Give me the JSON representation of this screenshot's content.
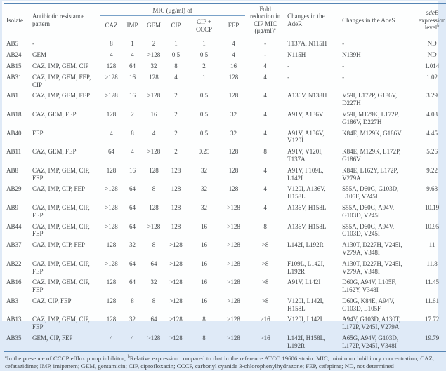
{
  "table": {
    "headers": {
      "isolate": "Isolate",
      "pattern": "Antibiotic resistance pattern",
      "mic_group": "MIC (μg/ml) of",
      "mic_cols": [
        "CAZ",
        "IMP",
        "GEM",
        "CIP",
        "CIP + CCCP",
        "FEP"
      ],
      "fold": {
        "text": "Fold reduction in CIP MIC (μg/ml)",
        "sup": "a"
      },
      "ader": "Changes in the AdeR",
      "ades": "Changes in the AdeS",
      "adeb": {
        "italic": "adeB",
        "rest": " expression level",
        "sup": "b"
      }
    },
    "rows": [
      {
        "isolate": "AB5",
        "pattern": "-",
        "mic": [
          "8",
          "1",
          "2",
          "1",
          "1",
          "4"
        ],
        "fold": "-",
        "ader": "T137A, N115H",
        "ades": "-",
        "adeb": "ND"
      },
      {
        "isolate": "AB24",
        "pattern": "GEM",
        "mic": [
          "4",
          "4",
          ">128",
          "0.5",
          "0.5",
          "4"
        ],
        "fold": "-",
        "ader": "N115H",
        "ades": "N139H",
        "adeb": "ND"
      },
      {
        "isolate": "AB15",
        "pattern": "CAZ, IMP, GEM, CIP",
        "mic": [
          "128",
          "64",
          "32",
          "8",
          "2",
          "16"
        ],
        "fold": "4",
        "ader": "-",
        "ades": "-",
        "adeb": "1.014"
      },
      {
        "isolate": "AB31",
        "pattern": "CAZ, IMP, GEM, FEP, CIP",
        "mic": [
          ">128",
          "16",
          "128",
          "4",
          "1",
          "128"
        ],
        "fold": "4",
        "ader": "-",
        "ades": "-",
        "adeb": "1.02"
      },
      {
        "isolate": "AB1",
        "pattern": "CAZ, IMP, GEM, FEP",
        "mic": [
          ">128",
          "16",
          ">128",
          "2",
          "0.5",
          "128"
        ],
        "fold": "4",
        "ader": "A136V, N138H",
        "ades": "V59I, L172P, G186V, D227H",
        "adeb": "3.29"
      },
      {
        "isolate": "AB18",
        "pattern": "CAZ, GEM, FEP",
        "mic": [
          "128",
          "2",
          "16",
          "2",
          "0.5",
          "32"
        ],
        "fold": "4",
        "ader": "A91V, A136V",
        "ades": "V59I, M129K, L172P, G186V, D227H",
        "adeb": "4.03"
      },
      {
        "isolate": "AB40",
        "pattern": "FEP",
        "mic": [
          "4",
          "8",
          "4",
          "2",
          "0.5",
          "32"
        ],
        "fold": "4",
        "ader": "A91V, A136V, V120I",
        "ades": "K84E, M129K, G186V",
        "adeb": "4.45"
      },
      {
        "isolate": "AB11",
        "pattern": "CAZ, GEM, FEP",
        "mic": [
          "64",
          "4",
          ">128",
          "2",
          "0.25",
          "128"
        ],
        "fold": "8",
        "ader": "A91V, V120I, T137A",
        "ades": "K84E, M129K, L172P, G186V",
        "adeb": "5.26"
      },
      {
        "isolate": "AB8",
        "pattern": "CAZ, IMP, GEM, CIP, FEP",
        "mic": [
          "128",
          "16",
          "128",
          "128",
          "32",
          "128"
        ],
        "fold": "4",
        "ader": "A91V, F109L, L142I",
        "ades": "K84E, L162Y, L172P, V279A",
        "adeb": "9.22"
      },
      {
        "isolate": "AB29",
        "pattern": "CAZ, IMP, CIP, FEP",
        "mic": [
          ">128",
          "64",
          "8",
          "128",
          "32",
          "128"
        ],
        "fold": "4",
        "ader": "V120I, A136V, H158L",
        "ades": "S55A, D60G, G103D, L105F, V245I",
        "adeb": "9.68"
      },
      {
        "isolate": "AB9",
        "pattern": "CAZ, IMP, GEM, CIP, FEP",
        "mic": [
          ">128",
          "64",
          "128",
          "128",
          "32",
          ">128"
        ],
        "fold": "4",
        "ader": "A136V, H158L",
        "ades": "S55A, D60G, A94V, G103D, V245I",
        "adeb": "10.19"
      },
      {
        "isolate": "AB44",
        "pattern": "CAZ, IMP, GEM, CIP, FEP",
        "mic": [
          ">128",
          "64",
          ">128",
          "128",
          "16",
          ">128"
        ],
        "fold": "8",
        "ader": "A136V, H158L",
        "ades": "S55A, D60G, A94V, G103D, V245I",
        "adeb": "10.95"
      },
      {
        "isolate": "AB37",
        "pattern": "CAZ, IMP, CIP, FEP",
        "mic": [
          "128",
          "32",
          "8",
          ">128",
          "16",
          ">128"
        ],
        "fold": ">8",
        "ader": "L142I, L192R",
        "ades": "A130T, D227H, V245I, V279A, V348I",
        "adeb": "11"
      },
      {
        "isolate": "AB22",
        "pattern": "CAZ, IMP, GEM, CIP, FEP",
        "mic": [
          ">128",
          "64",
          "64",
          ">128",
          "16",
          ">128"
        ],
        "fold": ">8",
        "ader": "F109L, L142I, L192R",
        "ades": "A130T, D227H, V245I, V279A, V348I",
        "adeb": "11.8"
      },
      {
        "isolate": "AB16",
        "pattern": "CAZ, IMP, GEM, CIP, FEP",
        "mic": [
          "128",
          "64",
          "32",
          ">128",
          "16",
          ">128"
        ],
        "fold": ">8",
        "ader": "A91V, L142I",
        "ades": "D60G, A94V, L105F, L162Y, V348I",
        "adeb": "11.45"
      },
      {
        "isolate": "AB3",
        "pattern": "CAZ, CIP, FEP",
        "mic": [
          "128",
          "8",
          "8",
          ">128",
          "16",
          ">128"
        ],
        "fold": ">8",
        "ader": "V120I, L142I, H158L",
        "ades": "D60G, K84E, A94V, G103D, L105F",
        "adeb": "11.61"
      },
      {
        "isolate": "AB13",
        "pattern": "CAZ, IMP, GEM, CIP, FEP",
        "mic": [
          "128",
          "32",
          "64",
          ">128",
          "8",
          ">128"
        ],
        "fold": ">16",
        "ader": "V120I, L142I",
        "ades": "A94V, G103D, A130T, L172P, V245I, V279A",
        "adeb": "17.72"
      },
      {
        "isolate": "AB35",
        "pattern": "GEM, CIP, FEP",
        "mic": [
          "4",
          "4",
          ">128",
          ">128",
          "8",
          ">128"
        ],
        "fold": ">16",
        "ader": "L142I, H158L, L192R",
        "ades": "A65G, A94V, G103D, L172P, V245I, V348I",
        "adeb": "19.79"
      }
    ]
  },
  "footnote": {
    "sup_a": "a",
    "part_a": "In the presence of CCCP efflux pump inhibitor; ",
    "sup_b": "b",
    "part_b": "Relative expression compared to that in the reference ATCC 19606 strain. MIC, minimum inhibitory concentration; CAZ, cefatazidime; IMP, imipenem; GEM, gentamicin; CIP, ciprofloxacin; CCCP, carbonyl cyanide 3-chlorophenylhydrazone; FEP, cefepime; ND, not determined"
  }
}
